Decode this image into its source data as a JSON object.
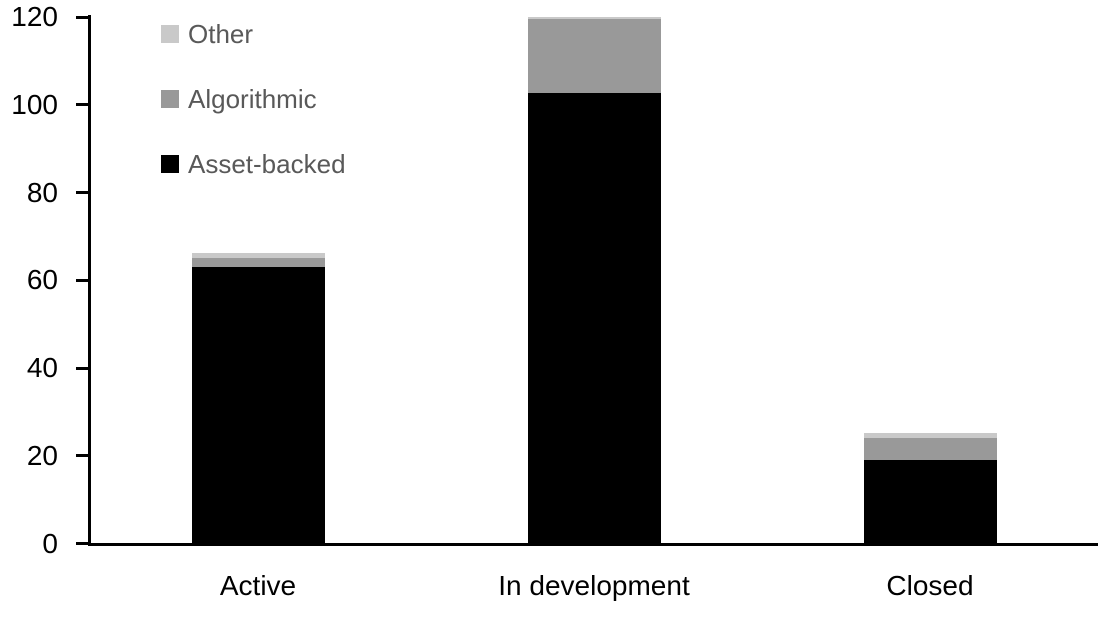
{
  "chart_data": {
    "type": "bar",
    "stacked": true,
    "title": "",
    "xlabel": "",
    "ylabel": "",
    "categories": [
      "Active",
      "In development",
      "Closed"
    ],
    "series": [
      {
        "name": "Asset-backed",
        "color": "#000000",
        "values": [
          63,
          102.5,
          19
        ]
      },
      {
        "name": "Algorithmic",
        "color": "#999999",
        "values": [
          2,
          17,
          5
        ]
      },
      {
        "name": "Other",
        "color": "#c9c9c9",
        "values": [
          1,
          0.5,
          1
        ]
      }
    ],
    "totals": [
      66,
      120,
      25
    ],
    "ylim": [
      0,
      120
    ],
    "yticks": [
      0,
      20,
      40,
      60,
      80,
      100,
      120
    ],
    "grid": false,
    "legend_position": "top-left",
    "legend_order": [
      "Other",
      "Algorithmic",
      "Asset-backed"
    ]
  },
  "styles": {
    "axis_color": "#000000",
    "tick_label_color": "#000000",
    "category_label_color": "#000000",
    "legend_text_color": "#595959",
    "background": "#ffffff"
  }
}
